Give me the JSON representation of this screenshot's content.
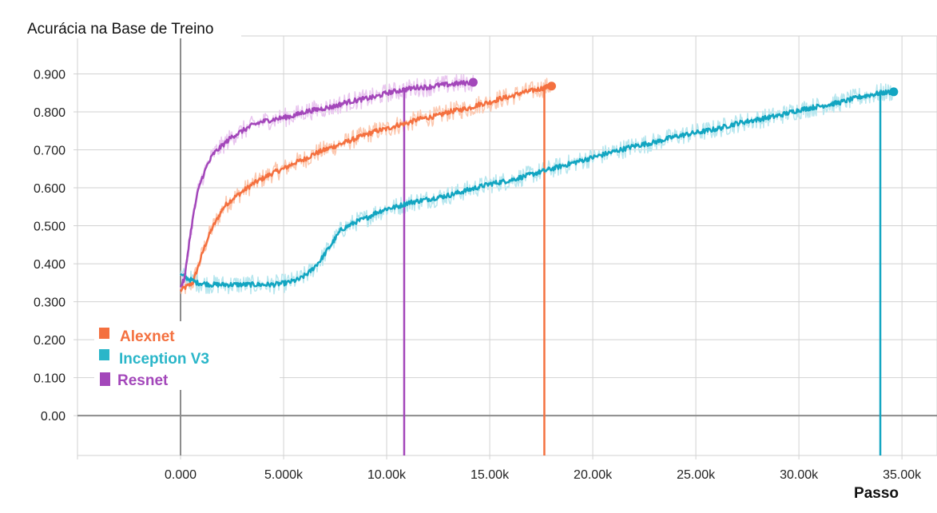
{
  "chart_data": {
    "type": "line",
    "title": "Acurácia na Base de Treino",
    "xlabel": "Passo",
    "ylabel": "",
    "xlim": [
      -5000,
      36700
    ],
    "ylim": [
      -0.105,
      1.0
    ],
    "x_ticks": [
      0,
      5000,
      10000,
      15000,
      20000,
      25000,
      30000,
      35000
    ],
    "x_tick_labels": [
      "0.000",
      "5.000k",
      "10.00k",
      "15.00k",
      "20.00k",
      "25.00k",
      "30.00k",
      "35.00k"
    ],
    "y_ticks": [
      0,
      0.1,
      0.2,
      0.3,
      0.4,
      0.5,
      0.6,
      0.7,
      0.8,
      0.9
    ],
    "y_tick_labels": [
      "0.00",
      "0.100",
      "0.200",
      "0.300",
      "0.400",
      "0.500",
      "0.600",
      "0.700",
      "0.800",
      "0.900"
    ],
    "grid": true,
    "legend_position": "lower-left",
    "series": [
      {
        "name": "Alexnet",
        "color": "#f4703f",
        "raw_color": "#fcc7ae",
        "drop_x": 17650,
        "x": [
          0,
          300,
          600,
          900,
          1200,
          1500,
          1800,
          2100,
          2500,
          3000,
          3500,
          4000,
          4500,
          5000,
          5500,
          6000,
          6500,
          7000,
          7500,
          8000,
          8500,
          9000,
          9500,
          10000,
          10500,
          11000,
          11500,
          12000,
          12500,
          13000,
          13500,
          14000,
          14500,
          15000,
          15500,
          16000,
          16500,
          17000,
          17500,
          18000
        ],
        "values": [
          0.33,
          0.34,
          0.35,
          0.4,
          0.45,
          0.49,
          0.52,
          0.55,
          0.57,
          0.59,
          0.61,
          0.625,
          0.64,
          0.65,
          0.665,
          0.675,
          0.69,
          0.7,
          0.71,
          0.72,
          0.73,
          0.74,
          0.75,
          0.755,
          0.765,
          0.77,
          0.78,
          0.785,
          0.79,
          0.8,
          0.805,
          0.81,
          0.82,
          0.825,
          0.835,
          0.84,
          0.85,
          0.855,
          0.862,
          0.868
        ]
      },
      {
        "name": "Inception V3",
        "color": "#12a5c1",
        "raw_color": "#b6e6ee",
        "drop_x": 33950,
        "x": [
          0,
          400,
          800,
          1500,
          2500,
          3500,
          4500,
          5200,
          5800,
          6300,
          6800,
          7300,
          7800,
          8500,
          9000,
          9500,
          10000,
          10500,
          11000,
          12000,
          13000,
          14000,
          15000,
          16000,
          17000,
          18000,
          19000,
          20000,
          21000,
          22000,
          23000,
          24000,
          25000,
          26000,
          27000,
          28000,
          29000,
          30000,
          31000,
          32000,
          33000,
          34000,
          34600
        ],
        "values": [
          0.37,
          0.36,
          0.35,
          0.345,
          0.345,
          0.345,
          0.345,
          0.35,
          0.36,
          0.38,
          0.41,
          0.45,
          0.49,
          0.51,
          0.52,
          0.535,
          0.545,
          0.55,
          0.56,
          0.57,
          0.58,
          0.595,
          0.61,
          0.62,
          0.635,
          0.65,
          0.665,
          0.68,
          0.695,
          0.71,
          0.72,
          0.735,
          0.745,
          0.755,
          0.77,
          0.78,
          0.79,
          0.805,
          0.815,
          0.825,
          0.84,
          0.85,
          0.853
        ]
      },
      {
        "name": "Resnet",
        "color": "#a347ba",
        "raw_color": "#e9c6ef",
        "drop_x": 10850,
        "x": [
          0,
          200,
          400,
          600,
          800,
          1000,
          1300,
          1600,
          2000,
          2500,
          3000,
          3500,
          4000,
          4500,
          5000,
          5500,
          6000,
          6500,
          7000,
          7500,
          8000,
          8500,
          9000,
          9500,
          10000,
          10500,
          11000,
          11500,
          12000,
          12500,
          13000,
          13500,
          14000,
          14200
        ],
        "values": [
          0.34,
          0.36,
          0.45,
          0.52,
          0.58,
          0.62,
          0.66,
          0.69,
          0.71,
          0.735,
          0.75,
          0.765,
          0.775,
          0.78,
          0.785,
          0.79,
          0.8,
          0.805,
          0.81,
          0.815,
          0.825,
          0.83,
          0.835,
          0.84,
          0.85,
          0.855,
          0.86,
          0.865,
          0.865,
          0.87,
          0.872,
          0.875,
          0.877,
          0.878
        ]
      }
    ]
  }
}
